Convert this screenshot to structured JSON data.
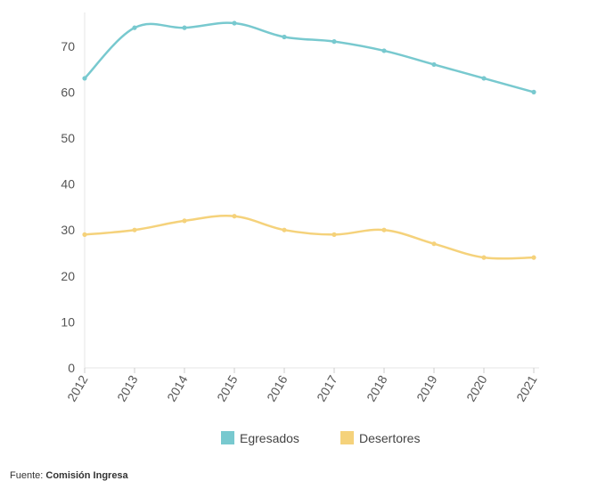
{
  "chart_data": {
    "type": "line",
    "categories": [
      "2012",
      "2013",
      "2014",
      "2015",
      "2016",
      "2017",
      "2018",
      "2019",
      "2020",
      "2021"
    ],
    "series": [
      {
        "name": "Egresados",
        "color": "#78c9cf",
        "values": [
          63,
          74,
          74,
          75,
          72,
          71,
          69,
          66,
          63,
          60
        ]
      },
      {
        "name": "Desertores",
        "color": "#f5d27b",
        "values": [
          29,
          30,
          32,
          33,
          30,
          29,
          30,
          27,
          24,
          24
        ]
      }
    ],
    "ylim": [
      0,
      75
    ],
    "yticks": [
      0,
      10,
      20,
      30,
      40,
      50,
      60,
      70
    ],
    "grid": false,
    "legend_position": "bottom"
  },
  "source": {
    "prefix": "Fuente:",
    "name": "Comisión Ingresa"
  }
}
